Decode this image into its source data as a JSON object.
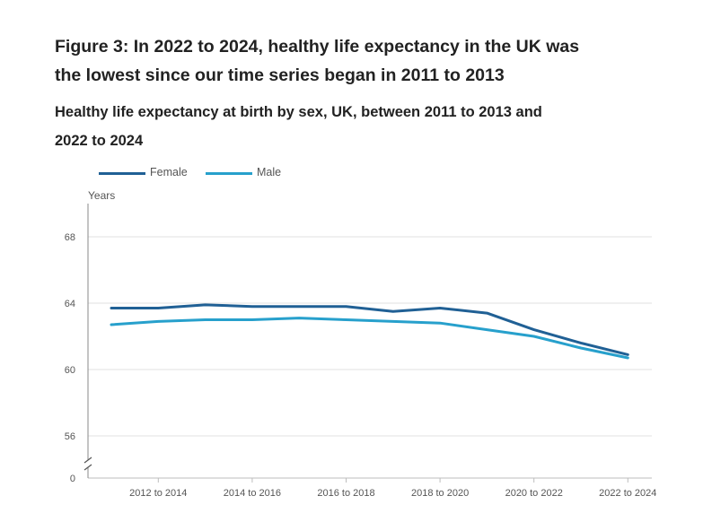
{
  "chart_data": {
    "type": "line",
    "title": "Figure 3: In 2022 to 2024, healthy life expectancy in the UK was the lowest since our time series began in 2011 to 2013",
    "subtitle": "Healthy life expectancy at birth by sex, UK, between 2011 to 2013 and 2022 to 2024",
    "ylabel": "Years",
    "xlabel": "",
    "x": [
      "2011 to 2013",
      "2012 to 2014",
      "2013 to 2015",
      "2014 to 2016",
      "2015 to 2017",
      "2016 to 2018",
      "2017 to 2019",
      "2018 to 2020",
      "2019 to 2021",
      "2020 to 2022",
      "2021 to 2023",
      "2022 to 2024"
    ],
    "x_tick_labels": [
      "2012 to 2014",
      "2014 to 2016",
      "2016 to 2018",
      "2018 to 2020",
      "2020 to 2022",
      "2022 to 2024"
    ],
    "y_ticks": [
      68,
      64,
      60,
      56
    ],
    "y_zero_label": "0",
    "y_axis_break": true,
    "ylim": [
      54,
      70
    ],
    "grid": true,
    "legend_position": "top-left",
    "series": [
      {
        "name": "Female",
        "color": "#206095",
        "values": [
          63.7,
          63.7,
          63.9,
          63.8,
          63.8,
          63.8,
          63.5,
          63.7,
          63.4,
          62.4,
          61.6,
          60.9
        ]
      },
      {
        "name": "Male",
        "color": "#27a0cc",
        "values": [
          62.7,
          62.9,
          63.0,
          63.0,
          63.1,
          63.0,
          62.9,
          62.8,
          62.4,
          62.0,
          61.3,
          60.7
        ]
      }
    ]
  }
}
